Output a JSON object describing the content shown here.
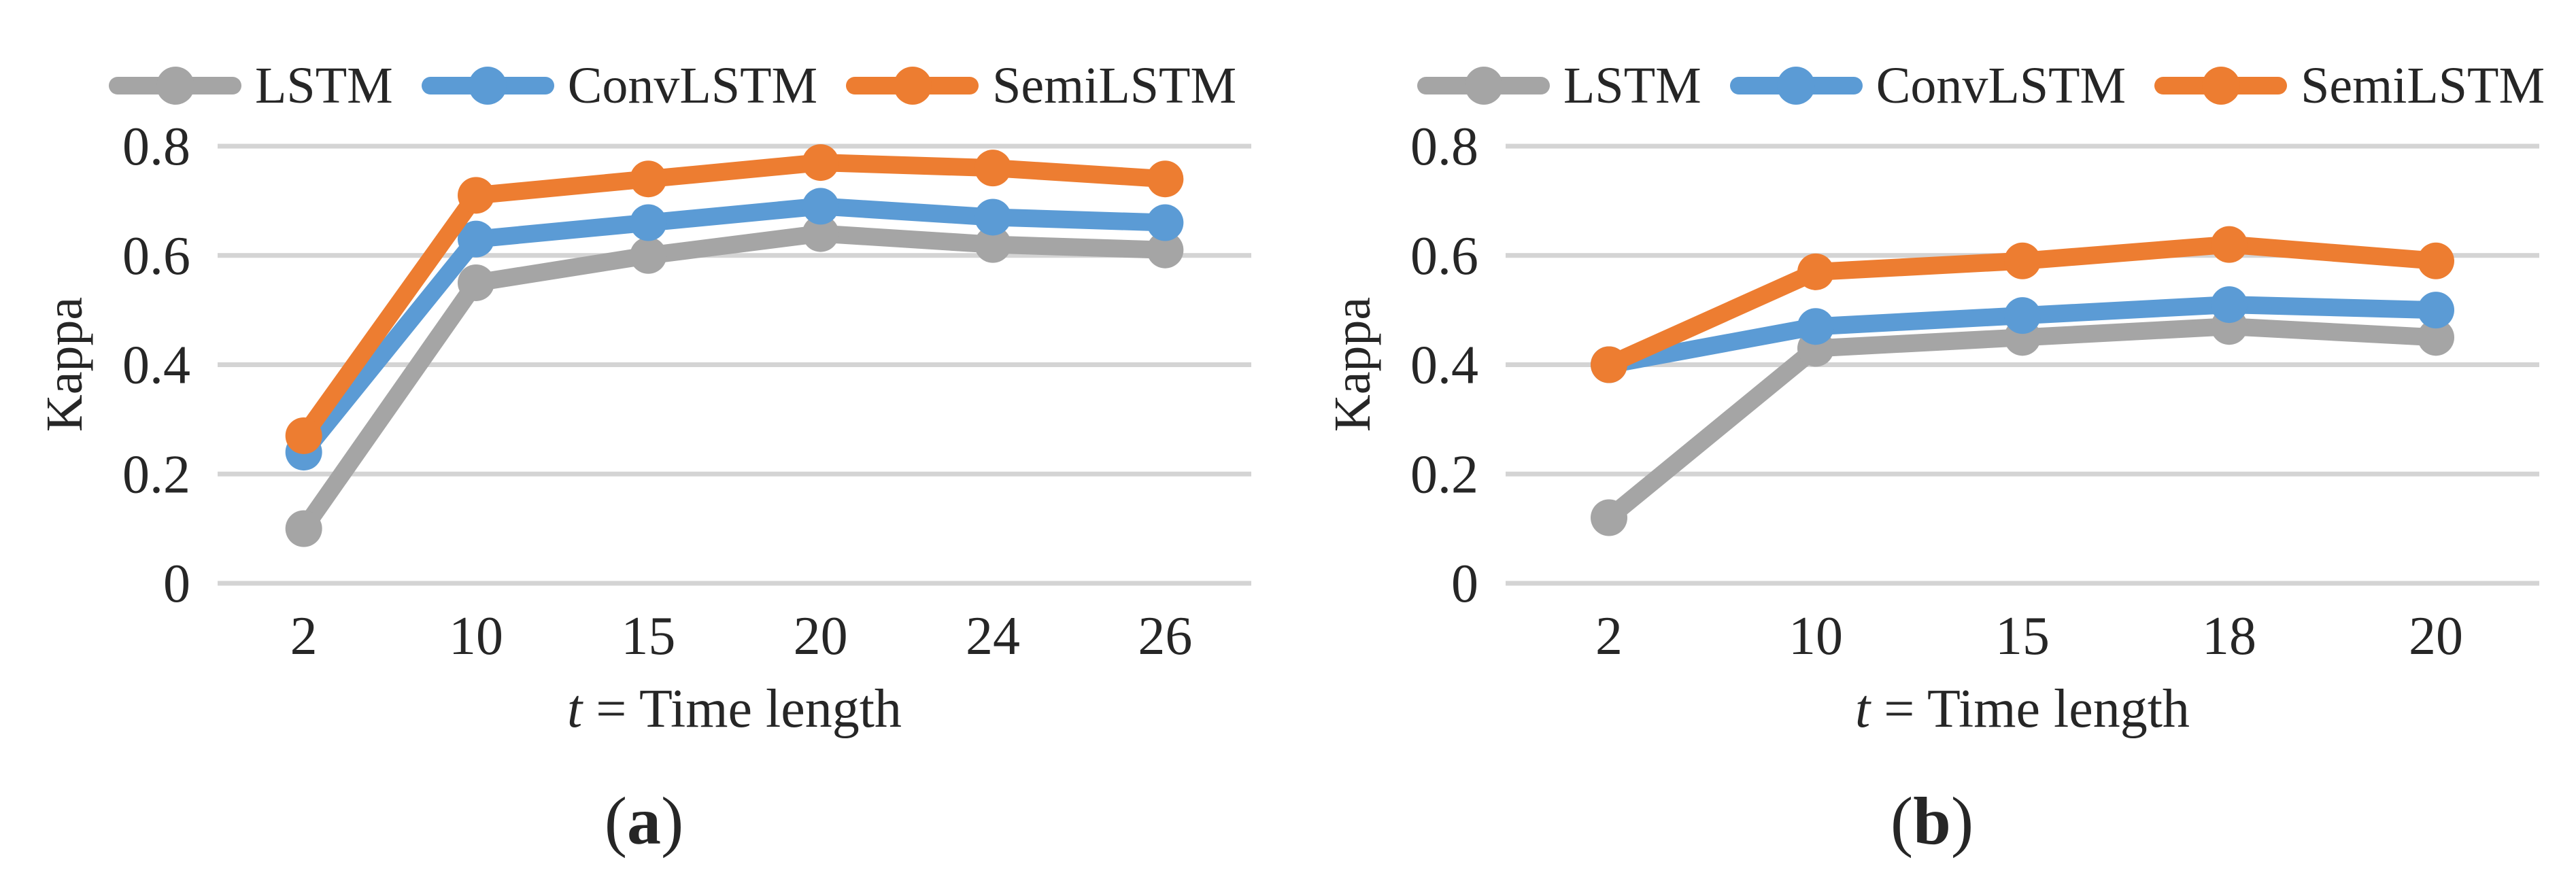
{
  "figure": {
    "background": "#ffffff",
    "text_color": "#262626",
    "gridline_color": "#d4d4d4"
  },
  "chart_data": [
    {
      "id": "a",
      "type": "line",
      "caption": {
        "open": "(",
        "letter": "a",
        "close": ")"
      },
      "xlabel": {
        "italic": "t",
        "rest": " = Time length"
      },
      "ylabel": "Kappa",
      "categories": [
        "2",
        "10",
        "15",
        "20",
        "24",
        "26"
      ],
      "ylim": [
        0,
        0.8
      ],
      "yticks": [
        {
          "value": 0,
          "label": "0"
        },
        {
          "value": 0.2,
          "label": "0.2"
        },
        {
          "value": 0.4,
          "label": "0.4"
        },
        {
          "value": 0.6,
          "label": "0.6"
        },
        {
          "value": 0.8,
          "label": "0.8"
        }
      ],
      "grid": true,
      "legend_position": "top",
      "series": [
        {
          "name": "LSTM",
          "color": "#a5a5a5",
          "values": [
            0.1,
            0.55,
            0.6,
            0.64,
            0.62,
            0.61
          ]
        },
        {
          "name": "ConvLSTM",
          "color": "#5b9bd5",
          "values": [
            0.24,
            0.63,
            0.66,
            0.69,
            0.67,
            0.66
          ]
        },
        {
          "name": "SemiLSTM",
          "color": "#ed7d31",
          "values": [
            0.27,
            0.71,
            0.74,
            0.77,
            0.76,
            0.74
          ]
        }
      ]
    },
    {
      "id": "b",
      "type": "line",
      "caption": {
        "open": "(",
        "letter": "b",
        "close": ")"
      },
      "xlabel": {
        "italic": "t",
        "rest": " = Time length"
      },
      "ylabel": "Kappa",
      "categories": [
        "2",
        "10",
        "15",
        "18",
        "20"
      ],
      "ylim": [
        0,
        0.8
      ],
      "yticks": [
        {
          "value": 0,
          "label": "0"
        },
        {
          "value": 0.2,
          "label": "0.2"
        },
        {
          "value": 0.4,
          "label": "0.4"
        },
        {
          "value": 0.6,
          "label": "0.6"
        },
        {
          "value": 0.8,
          "label": "0.8"
        }
      ],
      "grid": true,
      "legend_position": "top",
      "series": [
        {
          "name": "LSTM",
          "color": "#a5a5a5",
          "values": [
            0.12,
            0.43,
            0.45,
            0.47,
            0.45
          ]
        },
        {
          "name": "ConvLSTM",
          "color": "#5b9bd5",
          "values": [
            0.4,
            0.47,
            0.49,
            0.51,
            0.5
          ]
        },
        {
          "name": "SemiLSTM",
          "color": "#ed7d31",
          "values": [
            0.4,
            0.57,
            0.59,
            0.62,
            0.59
          ]
        }
      ]
    }
  ]
}
